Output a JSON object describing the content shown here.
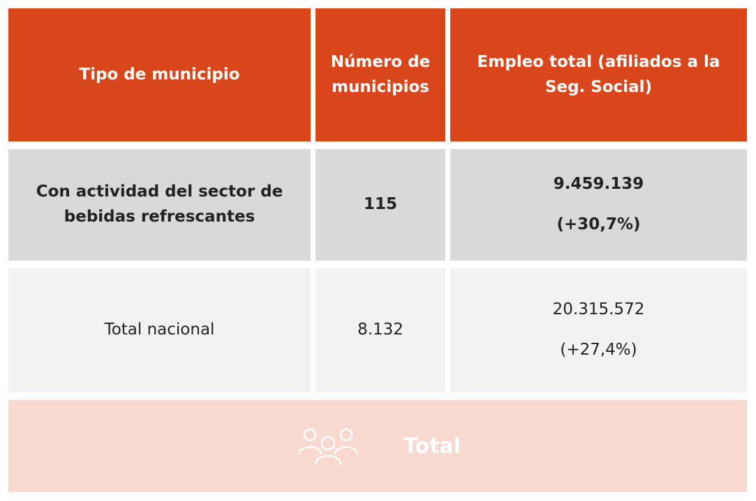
{
  "table": {
    "header": [
      "Tipo de municipio",
      "Número de municipios",
      "Empleo total (afiliados a la Seg. Social)"
    ],
    "rows": [
      [
        "Con actividad del sector de bebidas refrescantes",
        "115",
        [
          "9.459.139",
          "(+30,7%)"
        ]
      ],
      [
        "Total nacional",
        "8.132",
        [
          "20.315.572",
          "(+27,4%)"
        ]
      ]
    ]
  },
  "footer": {
    "label": "Total"
  }
}
